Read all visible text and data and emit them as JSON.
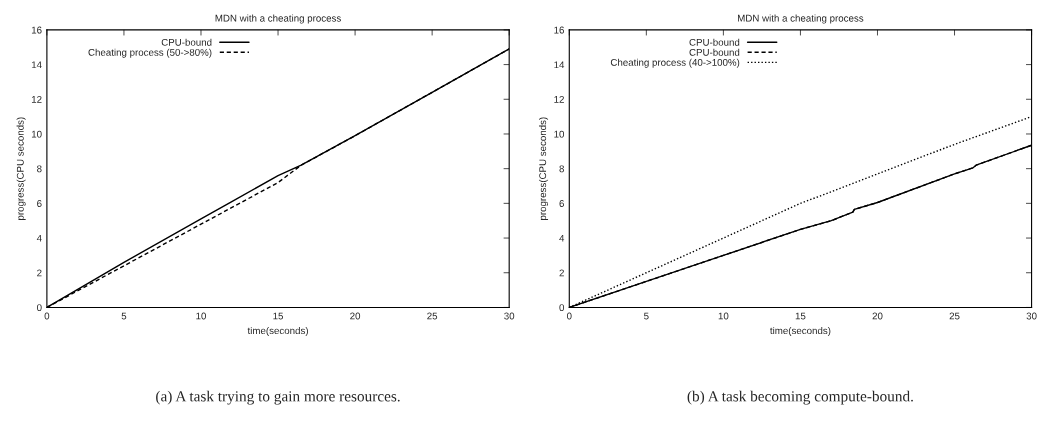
{
  "chart_data": [
    {
      "type": "line",
      "title": "MDN with a cheating process",
      "xlabel": "time(seconds)",
      "ylabel": "progress(CPU seconds)",
      "xlim": [
        0,
        30
      ],
      "xticks": [
        0,
        5,
        10,
        15,
        20,
        25,
        30
      ],
      "ylim": [
        0,
        16
      ],
      "yticks": [
        0,
        2,
        4,
        6,
        8,
        10,
        12,
        14,
        16
      ],
      "grid": false,
      "legend": "top left",
      "series": [
        {
          "name": "CPU-bound",
          "color": "#000000",
          "line_style": "solid",
          "x": [
            0,
            5,
            10,
            12,
            15,
            16.5,
            20,
            25,
            30
          ],
          "values": [
            0,
            2.6,
            5.1,
            6.1,
            7.6,
            8.2,
            9.9,
            12.4,
            14.9
          ]
        },
        {
          "name": "Cheating process (50->80%)",
          "color": "#000000",
          "line_style": "dashed",
          "x": [
            0,
            5,
            10,
            15,
            16.5,
            20,
            25,
            30
          ],
          "values": [
            0,
            2.4,
            4.8,
            7.2,
            8.2,
            9.9,
            12.4,
            14.9
          ]
        }
      ],
      "annotations": [
        "(a) A task trying to gain more resources."
      ]
    },
    {
      "type": "line",
      "title": "MDN with a cheating process",
      "xlabel": "time(seconds)",
      "ylabel": "progress(CPU seconds)",
      "xlim": [
        0,
        30
      ],
      "xticks": [
        0,
        5,
        10,
        15,
        20,
        25,
        30
      ],
      "ylim": [
        0,
        16
      ],
      "yticks": [
        0,
        2,
        4,
        6,
        8,
        10,
        12,
        14,
        16
      ],
      "grid": false,
      "legend": "top left",
      "series": [
        {
          "name": "CPU-bound",
          "color": "#000000",
          "line_style": "solid",
          "x": [
            0,
            5,
            10,
            15,
            17,
            18.4,
            18.5,
            20,
            25,
            26.2,
            26.4,
            30
          ],
          "values": [
            0,
            1.5,
            3.0,
            4.5,
            5.0,
            5.5,
            5.65,
            6.05,
            7.7,
            8.05,
            8.2,
            9.35
          ]
        },
        {
          "name": "CPU-bound",
          "color": "#000000",
          "line_style": "dashed",
          "x": [
            0,
            5,
            10,
            15,
            17,
            18.4,
            18.5,
            20,
            25,
            26.2,
            26.4,
            30
          ],
          "values": [
            0,
            1.5,
            3.0,
            4.5,
            5.0,
            5.5,
            5.65,
            6.05,
            7.7,
            8.05,
            8.2,
            9.35
          ]
        },
        {
          "name": "Cheating process (40->100%)",
          "color": "#000000",
          "line_style": "dotted",
          "x": [
            0,
            5,
            10,
            15,
            16.5,
            20,
            25,
            30
          ],
          "values": [
            0,
            2.0,
            4.0,
            6.0,
            6.5,
            7.7,
            9.4,
            11.0
          ]
        }
      ],
      "annotations": [
        "(b) A task becoming compute-bound."
      ]
    }
  ]
}
